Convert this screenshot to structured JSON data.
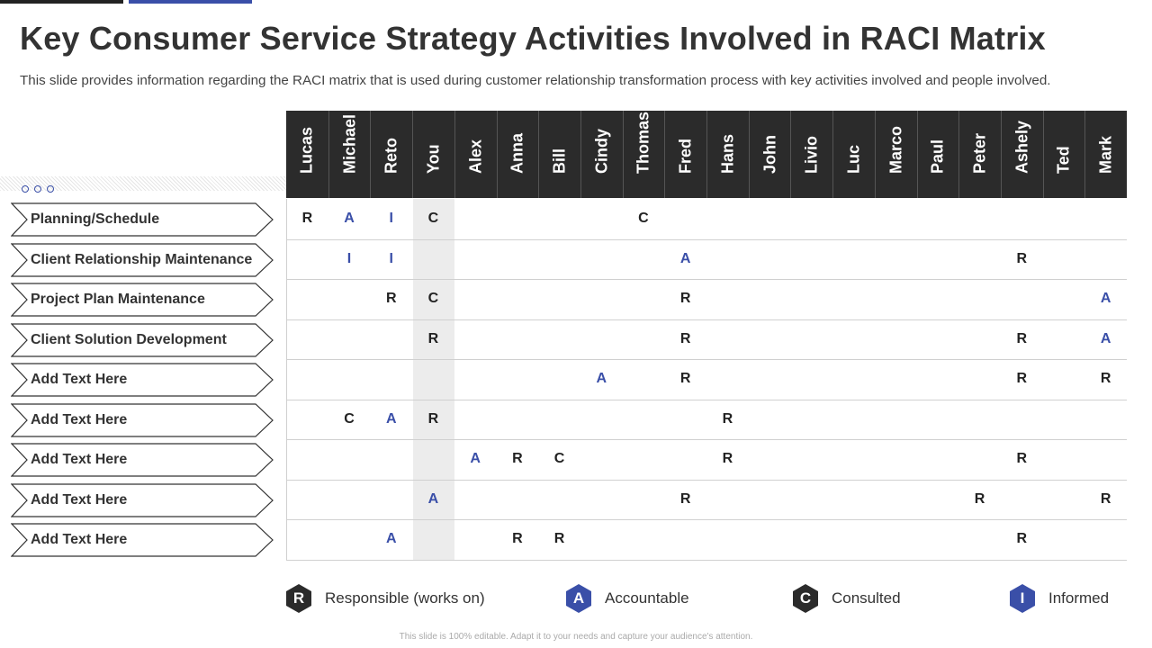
{
  "title": "Key Consumer Service Strategy Activities Involved in RACI Matrix",
  "subtitle": "This slide provides information regarding the RACI matrix that is used during customer relationship transformation process with key activities involved and people involved.",
  "people": [
    "Lucas",
    "Michael",
    "Reto",
    "You",
    "Alex",
    "Anna",
    "Bill",
    "Cindy",
    "Thomas",
    "Fred",
    "Hans",
    "John",
    "Livio",
    "Luc",
    "Marco",
    "Paul",
    "Peter",
    "Ashely",
    "Ted",
    "Mark"
  ],
  "activities": [
    {
      "label": "Planning/Schedule",
      "cells": [
        "R",
        "A",
        "I",
        "C",
        "",
        "",
        "",
        "",
        "C",
        "",
        "",
        "",
        "",
        "",
        "",
        "",
        "",
        "",
        "",
        ""
      ]
    },
    {
      "label": "Client Relationship Maintenance",
      "cells": [
        "",
        "I",
        "I",
        "",
        "",
        "",
        "",
        "",
        "",
        "A",
        "",
        "",
        "",
        "",
        "",
        "",
        "",
        "R",
        "",
        ""
      ]
    },
    {
      "label": "Project Plan Maintenance",
      "cells": [
        "",
        "",
        "R",
        "C",
        "",
        "",
        "",
        "",
        "",
        "R",
        "",
        "",
        "",
        "",
        "",
        "",
        "",
        "",
        "",
        "A"
      ]
    },
    {
      "label": "Client Solution Development",
      "cells": [
        "",
        "",
        "",
        "R",
        "",
        "",
        "",
        "",
        "",
        "R",
        "",
        "",
        "",
        "",
        "",
        "",
        "",
        "R",
        "",
        "A"
      ]
    },
    {
      "label": "Add Text Here",
      "cells": [
        "",
        "",
        "",
        "",
        "",
        "",
        "",
        "A",
        "",
        "R",
        "",
        "",
        "",
        "",
        "",
        "",
        "",
        "R",
        "",
        "R"
      ]
    },
    {
      "label": "Add Text Here",
      "cells": [
        "",
        "C",
        "A",
        "R",
        "",
        "",
        "",
        "",
        "",
        "",
        "R",
        "",
        "",
        "",
        "",
        "",
        "",
        "",
        "",
        ""
      ]
    },
    {
      "label": "Add Text Here",
      "cells": [
        "",
        "",
        "",
        "",
        "A",
        "R",
        "C",
        "",
        "",
        "",
        "R",
        "",
        "",
        "",
        "",
        "",
        "",
        "R",
        "",
        ""
      ]
    },
    {
      "label": "Add Text Here",
      "cells": [
        "",
        "",
        "",
        "A",
        "",
        "",
        "",
        "",
        "",
        "R",
        "",
        "",
        "",
        "",
        "",
        "",
        "R",
        "",
        "",
        "R"
      ]
    },
    {
      "label": "Add Text Here",
      "cells": [
        "",
        "",
        "A",
        "",
        "",
        "R",
        "R",
        "",
        "",
        "",
        "",
        "",
        "",
        "",
        "",
        "",
        "",
        "R",
        "",
        ""
      ]
    }
  ],
  "legend": [
    {
      "letter": "R",
      "text": "Responsible (works on)",
      "color": "#2b2b2b"
    },
    {
      "letter": "A",
      "text": "Accountable",
      "color": "#3a4fa8"
    },
    {
      "letter": "C",
      "text": "Consulted",
      "color": "#2b2b2b"
    },
    {
      "letter": "I",
      "text": "Informed",
      "color": "#3a4fa8"
    }
  ],
  "footer": "This slide is 100% editable. Adapt it to your needs and capture your audience's attention."
}
